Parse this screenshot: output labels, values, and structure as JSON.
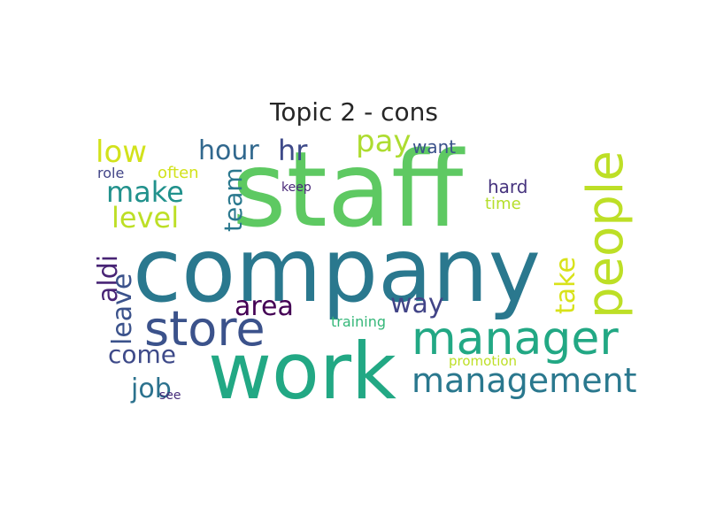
{
  "title": "Topic 2 - cons",
  "words": [
    {
      "text": "staff",
      "color": "#5ec962"
    },
    {
      "text": "company",
      "color": "#2a788e"
    },
    {
      "text": "work",
      "color": "#22a884"
    },
    {
      "text": "manager",
      "color": "#22a884"
    },
    {
      "text": "people",
      "color": "#bddf26"
    },
    {
      "text": "store",
      "color": "#3b528b"
    },
    {
      "text": "management",
      "color": "#2a788e"
    },
    {
      "text": "hour",
      "color": "#31688e"
    },
    {
      "text": "pay",
      "color": "#addc30"
    },
    {
      "text": "low",
      "color": "#d2e21b"
    },
    {
      "text": "make",
      "color": "#21918c"
    },
    {
      "text": "level",
      "color": "#bddf26"
    },
    {
      "text": "hr",
      "color": "#3e4a89"
    },
    {
      "text": "team",
      "color": "#2a788e"
    },
    {
      "text": "area",
      "color": "#440154"
    },
    {
      "text": "way",
      "color": "#414487"
    },
    {
      "text": "take",
      "color": "#d8e219"
    },
    {
      "text": "aldi",
      "color": "#482475"
    },
    {
      "text": "leave",
      "color": "#3b528b"
    },
    {
      "text": "come",
      "color": "#3e4a89"
    },
    {
      "text": "job",
      "color": "#2c728e"
    },
    {
      "text": "want",
      "color": "#3b528b"
    },
    {
      "text": "often",
      "color": "#d2e21b"
    },
    {
      "text": "role",
      "color": "#414487"
    },
    {
      "text": "keep",
      "color": "#482878"
    },
    {
      "text": "hard",
      "color": "#46337e"
    },
    {
      "text": "time",
      "color": "#b5de2b"
    },
    {
      "text": "training",
      "color": "#35b779"
    },
    {
      "text": "promotion",
      "color": "#bddf26"
    },
    {
      "text": "see",
      "color": "#472d7b"
    }
  ]
}
